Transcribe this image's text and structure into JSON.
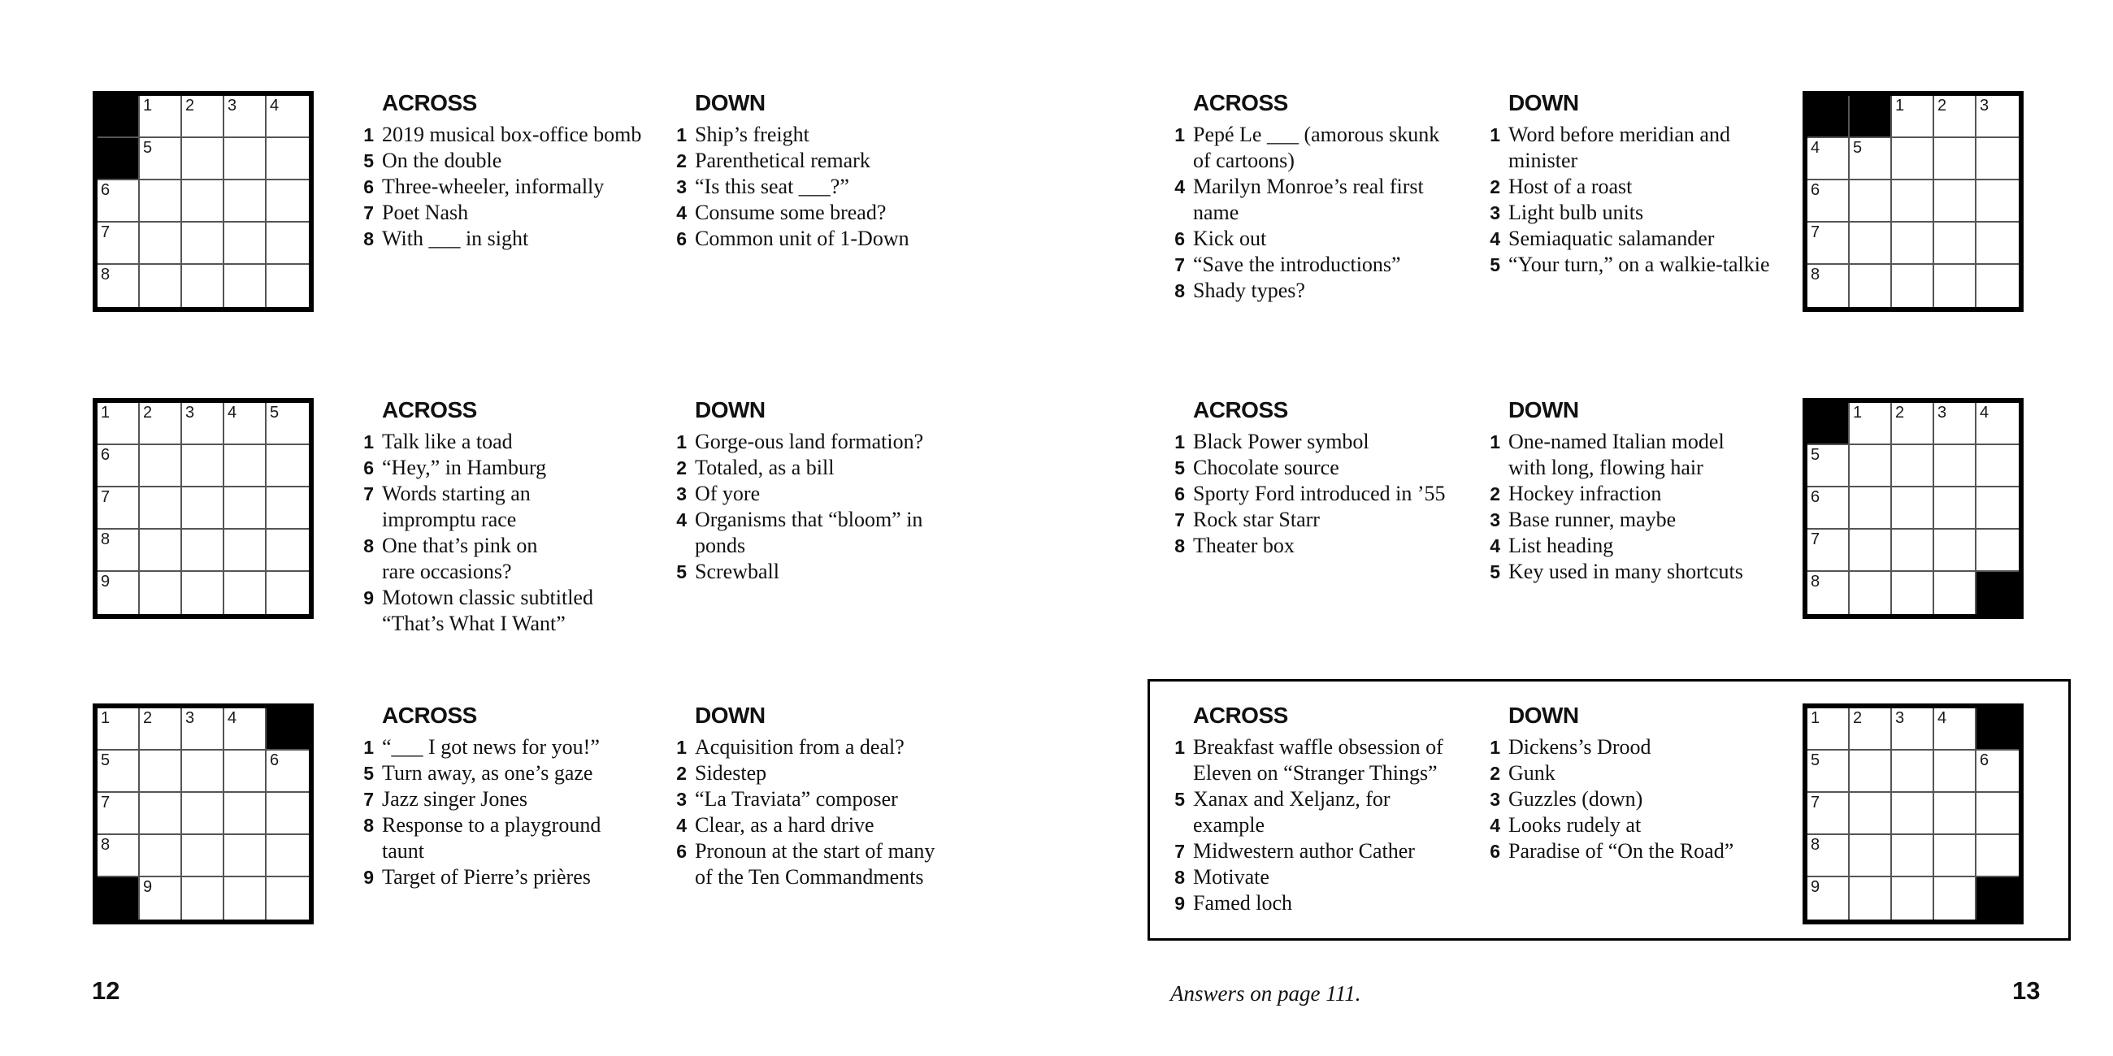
{
  "labels": {
    "across": "ACROSS",
    "down": "DOWN"
  },
  "pages": {
    "left": {
      "number": "12"
    },
    "right": {
      "number": "13",
      "answers_note": "Answers on page 111."
    }
  },
  "puzzles": [
    {
      "id": "left-top",
      "grid": [
        [
          "#",
          "1",
          "2",
          "3",
          "4"
        ],
        [
          "#",
          "5",
          "",
          "",
          ""
        ],
        [
          "6",
          "",
          "",
          "",
          ""
        ],
        [
          "7",
          "",
          "",
          "",
          ""
        ],
        [
          "8",
          "",
          "",
          "",
          ""
        ]
      ],
      "across": [
        {
          "num": "1",
          "text": "2019 musical box-office bomb"
        },
        {
          "num": "5",
          "text": "On the double"
        },
        {
          "num": "6",
          "text": "Three-wheeler, informally"
        },
        {
          "num": "7",
          "text": "Poet Nash"
        },
        {
          "num": "8",
          "text": "With ___ in sight"
        }
      ],
      "down": [
        {
          "num": "1",
          "text": "Ship’s freight"
        },
        {
          "num": "2",
          "text": "Parenthetical remark"
        },
        {
          "num": "3",
          "text": "“Is this seat ___?”"
        },
        {
          "num": "4",
          "text": "Consume some bread?"
        },
        {
          "num": "6",
          "text": "Common unit of 1-Down"
        }
      ]
    },
    {
      "id": "left-middle",
      "grid": [
        [
          "1",
          "2",
          "3",
          "4",
          "5"
        ],
        [
          "6",
          "",
          "",
          "",
          ""
        ],
        [
          "7",
          "",
          "",
          "",
          ""
        ],
        [
          "8",
          "",
          "",
          "",
          ""
        ],
        [
          "9",
          "",
          "",
          "",
          ""
        ]
      ],
      "across": [
        {
          "num": "1",
          "text": "Talk like a toad"
        },
        {
          "num": "6",
          "text": "“Hey,” in Hamburg"
        },
        {
          "num": "7",
          "text": "Words starting an\nimpromptu race"
        },
        {
          "num": "8",
          "text": "One that’s pink on\nrare occasions?"
        },
        {
          "num": "9",
          "text": "Motown classic subtitled\n“That’s What I Want”"
        }
      ],
      "down": [
        {
          "num": "1",
          "text": "Gorge-ous land formation?"
        },
        {
          "num": "2",
          "text": "Totaled, as a bill"
        },
        {
          "num": "3",
          "text": "Of yore"
        },
        {
          "num": "4",
          "text": "Organisms that “bloom” in\nponds"
        },
        {
          "num": "5",
          "text": "Screwball"
        }
      ]
    },
    {
      "id": "left-bottom",
      "grid": [
        [
          "1",
          "2",
          "3",
          "4",
          "#"
        ],
        [
          "5",
          "",
          "",
          "",
          "6"
        ],
        [
          "7",
          "",
          "",
          "",
          ""
        ],
        [
          "8",
          "",
          "",
          "",
          ""
        ],
        [
          "#",
          "9",
          "",
          "",
          ""
        ]
      ],
      "across": [
        {
          "num": "1",
          "text": "“___ I got news for you!”"
        },
        {
          "num": "5",
          "text": "Turn away, as one’s gaze"
        },
        {
          "num": "7",
          "text": "Jazz singer Jones"
        },
        {
          "num": "8",
          "text": "Response to a playground\ntaunt"
        },
        {
          "num": "9",
          "text": "Target of Pierre’s prières"
        }
      ],
      "down": [
        {
          "num": "1",
          "text": "Acquisition from a deal?"
        },
        {
          "num": "2",
          "text": "Sidestep"
        },
        {
          "num": "3",
          "text": "“La Traviata” composer"
        },
        {
          "num": "4",
          "text": "Clear, as a hard drive"
        },
        {
          "num": "6",
          "text": "Pronoun at the start of many\nof the Ten Commandments"
        }
      ]
    },
    {
      "id": "right-top",
      "grid": [
        [
          "#",
          "#",
          "1",
          "2",
          "3"
        ],
        [
          "4",
          "5",
          "",
          "",
          ""
        ],
        [
          "6",
          "",
          "",
          "",
          ""
        ],
        [
          "7",
          "",
          "",
          "",
          ""
        ],
        [
          "8",
          "",
          "",
          "",
          ""
        ]
      ],
      "across": [
        {
          "num": "1",
          "text": "Pepé Le ___ (amorous skunk\nof cartoons)"
        },
        {
          "num": "4",
          "text": "Marilyn Monroe’s real first\nname"
        },
        {
          "num": "6",
          "text": "Kick out"
        },
        {
          "num": "7",
          "text": "“Save the introductions”"
        },
        {
          "num": "8",
          "text": "Shady types?"
        }
      ],
      "down": [
        {
          "num": "1",
          "text": "Word before meridian and\nminister"
        },
        {
          "num": "2",
          "text": "Host of a roast"
        },
        {
          "num": "3",
          "text": "Light bulb units"
        },
        {
          "num": "4",
          "text": "Semiaquatic salamander"
        },
        {
          "num": "5",
          "text": "“Your turn,” on a walkie-talkie"
        }
      ]
    },
    {
      "id": "right-middle",
      "grid": [
        [
          "#",
          "1",
          "2",
          "3",
          "4"
        ],
        [
          "5",
          "",
          "",
          "",
          ""
        ],
        [
          "6",
          "",
          "",
          "",
          ""
        ],
        [
          "7",
          "",
          "",
          "",
          ""
        ],
        [
          "8",
          "",
          "",
          "",
          "#"
        ]
      ],
      "across": [
        {
          "num": "1",
          "text": "Black Power symbol"
        },
        {
          "num": "5",
          "text": "Chocolate source"
        },
        {
          "num": "6",
          "text": "Sporty Ford introduced in ’55"
        },
        {
          "num": "7",
          "text": "Rock star Starr"
        },
        {
          "num": "8",
          "text": "Theater box"
        }
      ],
      "down": [
        {
          "num": "1",
          "text": "One-named Italian model\nwith long, flowing hair"
        },
        {
          "num": "2",
          "text": "Hockey infraction"
        },
        {
          "num": "3",
          "text": "Base runner, maybe"
        },
        {
          "num": "4",
          "text": "List heading"
        },
        {
          "num": "5",
          "text": "Key used in many shortcuts"
        }
      ]
    },
    {
      "id": "right-bottom-featured",
      "grid": [
        [
          "1",
          "2",
          "3",
          "4",
          "#"
        ],
        [
          "5",
          "",
          "",
          "",
          "6"
        ],
        [
          "7",
          "",
          "",
          "",
          ""
        ],
        [
          "8",
          "",
          "",
          "",
          ""
        ],
        [
          "9",
          "",
          "",
          "",
          "#"
        ]
      ],
      "across": [
        {
          "num": "1",
          "text": "Breakfast waffle obsession of\nEleven on “Stranger Things”"
        },
        {
          "num": "5",
          "text": "Xanax and Xeljanz, for\nexample"
        },
        {
          "num": "7",
          "text": "Midwestern author Cather"
        },
        {
          "num": "8",
          "text": "Motivate"
        },
        {
          "num": "9",
          "text": "Famed loch"
        }
      ],
      "down": [
        {
          "num": "1",
          "text": "Dickens’s Drood"
        },
        {
          "num": "2",
          "text": "Gunk"
        },
        {
          "num": "3",
          "text": "Guzzles (down)"
        },
        {
          "num": "4",
          "text": "Looks rudely at"
        },
        {
          "num": "6",
          "text": "Paradise of “On the Road”"
        }
      ]
    }
  ]
}
